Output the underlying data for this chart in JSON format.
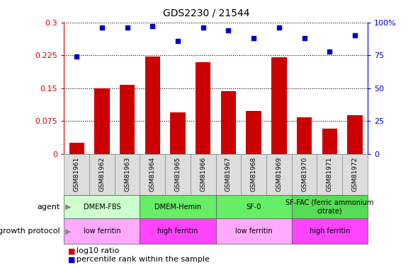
{
  "title": "GDS2230 / 21544",
  "categories": [
    "GSM81961",
    "GSM81962",
    "GSM81963",
    "GSM81964",
    "GSM81965",
    "GSM81966",
    "GSM81967",
    "GSM81968",
    "GSM81969",
    "GSM81970",
    "GSM81971",
    "GSM81972"
  ],
  "bar_values": [
    0.025,
    0.15,
    0.158,
    0.222,
    0.095,
    0.21,
    0.143,
    0.098,
    0.22,
    0.083,
    0.058,
    0.088
  ],
  "blue_values": [
    74,
    96,
    96,
    97,
    86,
    96,
    94,
    88,
    96,
    88,
    78,
    90
  ],
  "bar_color": "#cc0000",
  "blue_color": "#0000cc",
  "left_yticks": [
    0,
    0.075,
    0.15,
    0.225,
    0.3
  ],
  "left_yticklabels": [
    "0",
    "0.075",
    "0.15",
    "0.225",
    "0.3"
  ],
  "right_yticks": [
    0,
    25,
    50,
    75,
    100
  ],
  "right_yticklabels": [
    "0",
    "25",
    "50",
    "75",
    "100%"
  ],
  "ylim_left": [
    0,
    0.3
  ],
  "ylim_right": [
    0,
    100
  ],
  "agent_groups": [
    {
      "label": "DMEM-FBS",
      "start": 0,
      "end": 3,
      "color": "#ccffcc"
    },
    {
      "label": "DMEM-Hemin",
      "start": 3,
      "end": 6,
      "color": "#66ee66"
    },
    {
      "label": "SF-0",
      "start": 6,
      "end": 9,
      "color": "#66ee66"
    },
    {
      "label": "SF-FAC (ferric ammonium\ncitrate)",
      "start": 9,
      "end": 12,
      "color": "#55dd55"
    }
  ],
  "protocol_groups": [
    {
      "label": "low ferritin",
      "start": 0,
      "end": 3,
      "color": "#ffaaff"
    },
    {
      "label": "high ferritin",
      "start": 3,
      "end": 6,
      "color": "#ff44ff"
    },
    {
      "label": "low ferritin",
      "start": 6,
      "end": 9,
      "color": "#ffaaff"
    },
    {
      "label": "high ferritin",
      "start": 9,
      "end": 12,
      "color": "#ff44ff"
    }
  ],
  "tick_color_left": "#cc0000",
  "tick_color_right": "#0000cc",
  "sample_box_color": "#dddddd",
  "sample_box_edge": "#888888"
}
